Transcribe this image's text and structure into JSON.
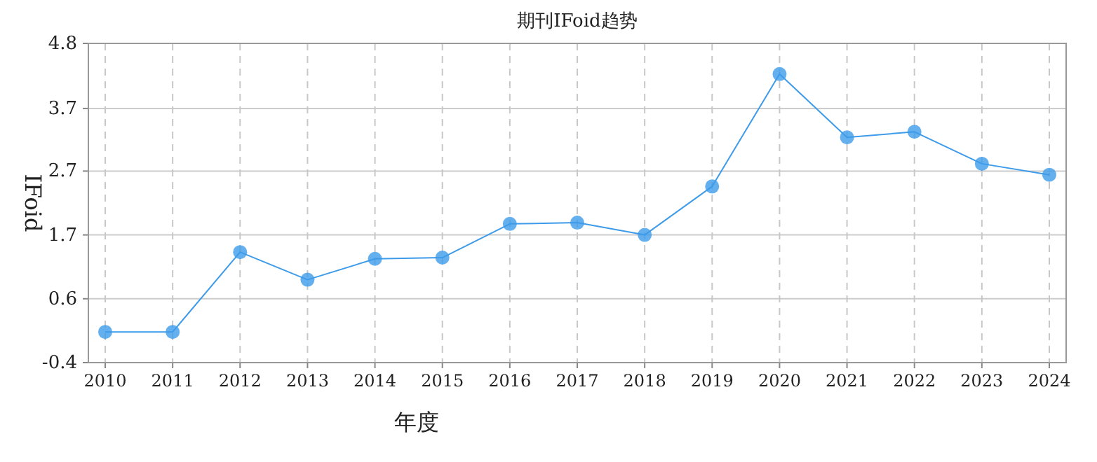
{
  "chart_data": {
    "type": "line",
    "title": "期刊IFoid趋势",
    "xlabel": "年度",
    "ylabel": "IFoid",
    "categories": [
      "2010",
      "2011",
      "2012",
      "2013",
      "2014",
      "2015",
      "2016",
      "2017",
      "2018",
      "2019",
      "2020",
      "2021",
      "2022",
      "2023",
      "2024"
    ],
    "series": [
      {
        "color": "#3d9be9",
        "values": [
          0.1,
          0.1,
          1.4,
          0.95,
          1.29,
          1.31,
          1.86,
          1.88,
          1.68,
          2.47,
          4.3,
          3.27,
          3.36,
          2.84,
          2.66
        ]
      }
    ],
    "ylim": [
      -0.4,
      4.8
    ],
    "yticks": [
      -0.4,
      {
        "value": 0.64,
        "label": "0.6"
      },
      {
        "value": 1.68,
        "label": "1.7"
      },
      {
        "value": 2.72,
        "label": "2.7"
      },
      {
        "value": 3.74,
        "label": "3.7"
      },
      4.8
    ],
    "grid": true,
    "marker": "circle",
    "line_style": "solid"
  }
}
